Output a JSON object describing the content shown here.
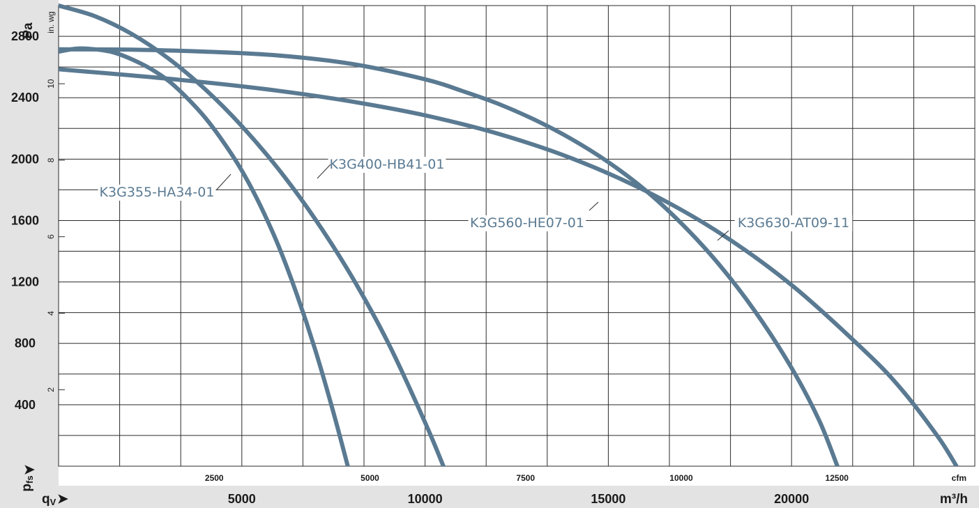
{
  "chart_data": {
    "type": "line",
    "title": "",
    "x_axis_bottom": {
      "unit": "m³/h",
      "symbol": "q",
      "symbol_sub": "V",
      "range": [
        0,
        25000
      ],
      "ticks": [
        "5000",
        "10000",
        "15000",
        "20000"
      ],
      "tick_values": [
        5000,
        10000,
        15000,
        20000
      ],
      "grid_step": 1666.67
    },
    "x_axis_top": {
      "unit": "cfm",
      "ticks": [
        "2500",
        "5000",
        "7500",
        "10000",
        "12500"
      ],
      "tick_values": [
        2500,
        5000,
        7500,
        10000,
        12500
      ]
    },
    "y_axis_left": {
      "unit": "Pa",
      "symbol": "p",
      "symbol_sub": "fs",
      "range": [
        0,
        3000
      ],
      "ticks": [
        "400",
        "800",
        "1200",
        "1600",
        "2000",
        "2400",
        "2800"
      ],
      "tick_values": [
        400,
        800,
        1200,
        1600,
        2000,
        2400,
        2800
      ],
      "grid_step": 200
    },
    "y_axis_inner": {
      "unit": "in. wg",
      "ticks": [
        "2",
        "4",
        "6",
        "8",
        "10"
      ],
      "tick_values": [
        2,
        4,
        6,
        8,
        10
      ]
    },
    "grid": true,
    "line_color": "#5a7a92",
    "series": [
      {
        "name": "K3G355-HA34-01",
        "x": [
          0,
          500,
          1000,
          1500,
          2000,
          2500,
          3000,
          3500,
          4000,
          4500,
          5000,
          5500,
          6000,
          6500,
          7000,
          7500,
          8000,
          8100
        ],
        "y": [
          2700,
          2720,
          2715,
          2695,
          2650,
          2590,
          2510,
          2400,
          2270,
          2110,
          1925,
          1700,
          1435,
          1120,
          760,
          350,
          -100,
          -200
        ]
      },
      {
        "name": "K3G400-HB41-01",
        "x": [
          0,
          1000,
          2000,
          3000,
          4000,
          5000,
          6000,
          7000,
          8000,
          9000,
          10000,
          10500,
          11000
        ],
        "y": [
          3000,
          2930,
          2815,
          2655,
          2455,
          2215,
          1935,
          1610,
          1235,
          800,
          285,
          0,
          -300
        ]
      },
      {
        "name": "K3G560-HE07-01",
        "x": [
          0,
          2000,
          4000,
          6000,
          8000,
          10000,
          11000,
          12000,
          13000,
          14000,
          15000,
          16000,
          17000,
          18000,
          19000,
          20000,
          20750,
          21250
        ],
        "y": [
          2715,
          2713,
          2700,
          2675,
          2620,
          2520,
          2445,
          2360,
          2255,
          2130,
          1980,
          1800,
          1580,
          1320,
          1010,
          640,
          300,
          0
        ]
      },
      {
        "name": "K3G630-AT09-11",
        "x": [
          0,
          2000,
          4000,
          6000,
          8000,
          10000,
          12000,
          14000,
          16000,
          18000,
          20000,
          22000,
          23000,
          24000,
          24500
        ],
        "y": [
          2585,
          2545,
          2500,
          2445,
          2375,
          2285,
          2165,
          2005,
          1795,
          1525,
          1180,
          750,
          500,
          190,
          0
        ]
      }
    ]
  }
}
